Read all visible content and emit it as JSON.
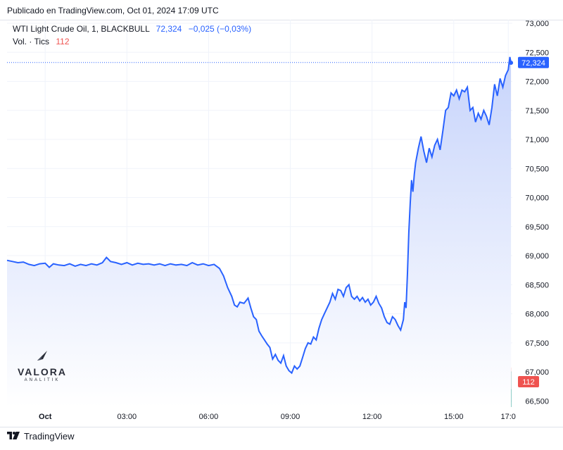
{
  "header": {
    "published": "Publicado en TradingView.com, Oct 01, 2024 17:09 UTC"
  },
  "legend": {
    "symbol": "WTI Light Crude Oil, 1, BLACKBULL",
    "price": "72,324",
    "change": "−0,025 (−0,03%)",
    "volume_label": "Vol. · Tics",
    "volume_value": "112"
  },
  "watermark": {
    "brand": "VALORA",
    "sub": "ANALITIK"
  },
  "footer": {
    "brand": "TradingView"
  },
  "colors": {
    "line": "#2962ff",
    "area_top": "#c7d4fb",
    "area_bottom": "#ffffff",
    "vol_up": "#26a69a",
    "vol_down": "#ef5350",
    "grid": "#f0f3fa",
    "axis_text": "#131722"
  },
  "chart_data": {
    "type": "area",
    "title": "WTI Light Crude Oil, 1, BLACKBULL",
    "x_unit": "hours UTC since Oct 01 00:00",
    "x_ticks": [
      {
        "label": "Oct",
        "x": 0
      },
      {
        "label": "03:00",
        "x": 3
      },
      {
        "label": "06:00",
        "x": 6
      },
      {
        "label": "09:00",
        "x": 9
      },
      {
        "label": "12:00",
        "x": 12
      },
      {
        "label": "15:00",
        "x": 15
      },
      {
        "label": "17:0",
        "x": 17
      }
    ],
    "xlim": [
      -1.4,
      17.15
    ],
    "y_ticks": [
      "73,000",
      "72,500",
      "72,000",
      "71,500",
      "71,000",
      "70,500",
      "70,000",
      "69,500",
      "69,000",
      "68,500",
      "68,000",
      "67,500",
      "67,000",
      "66,500"
    ],
    "ylim": [
      66.48,
      73.0
    ],
    "last_price": 72.324,
    "last_price_label": "72,324",
    "last_volume_label": "112",
    "series": [
      {
        "name": "WTI Light Crude Oil",
        "points": [
          [
            -1.4,
            68.92
          ],
          [
            -1.2,
            68.9
          ],
          [
            -1.0,
            68.88
          ],
          [
            -0.8,
            68.89
          ],
          [
            -0.6,
            68.85
          ],
          [
            -0.4,
            68.83
          ],
          [
            -0.2,
            68.86
          ],
          [
            0.0,
            68.87
          ],
          [
            0.15,
            68.8
          ],
          [
            0.3,
            68.86
          ],
          [
            0.5,
            68.84
          ],
          [
            0.7,
            68.83
          ],
          [
            0.9,
            68.86
          ],
          [
            1.1,
            68.82
          ],
          [
            1.3,
            68.85
          ],
          [
            1.5,
            68.83
          ],
          [
            1.7,
            68.86
          ],
          [
            1.9,
            68.84
          ],
          [
            2.1,
            68.88
          ],
          [
            2.25,
            68.97
          ],
          [
            2.4,
            68.9
          ],
          [
            2.6,
            68.88
          ],
          [
            2.8,
            68.85
          ],
          [
            3.0,
            68.88
          ],
          [
            3.2,
            68.84
          ],
          [
            3.4,
            68.87
          ],
          [
            3.6,
            68.85
          ],
          [
            3.8,
            68.86
          ],
          [
            4.0,
            68.84
          ],
          [
            4.2,
            68.86
          ],
          [
            4.4,
            68.83
          ],
          [
            4.6,
            68.86
          ],
          [
            4.8,
            68.84
          ],
          [
            5.0,
            68.85
          ],
          [
            5.2,
            68.83
          ],
          [
            5.4,
            68.88
          ],
          [
            5.6,
            68.84
          ],
          [
            5.8,
            68.86
          ],
          [
            6.0,
            68.83
          ],
          [
            6.2,
            68.85
          ],
          [
            6.4,
            68.78
          ],
          [
            6.55,
            68.65
          ],
          [
            6.7,
            68.45
          ],
          [
            6.85,
            68.3
          ],
          [
            6.95,
            68.15
          ],
          [
            7.05,
            68.12
          ],
          [
            7.15,
            68.2
          ],
          [
            7.3,
            68.18
          ],
          [
            7.45,
            68.27
          ],
          [
            7.55,
            68.1
          ],
          [
            7.65,
            67.95
          ],
          [
            7.75,
            67.9
          ],
          [
            7.85,
            67.7
          ],
          [
            7.95,
            67.62
          ],
          [
            8.05,
            67.55
          ],
          [
            8.15,
            67.48
          ],
          [
            8.25,
            67.42
          ],
          [
            8.35,
            67.22
          ],
          [
            8.45,
            67.3
          ],
          [
            8.55,
            67.2
          ],
          [
            8.65,
            67.15
          ],
          [
            8.75,
            67.28
          ],
          [
            8.85,
            67.1
          ],
          [
            8.95,
            67.02
          ],
          [
            9.05,
            66.98
          ],
          [
            9.15,
            67.1
          ],
          [
            9.25,
            67.05
          ],
          [
            9.35,
            67.1
          ],
          [
            9.45,
            67.25
          ],
          [
            9.55,
            67.4
          ],
          [
            9.65,
            67.5
          ],
          [
            9.75,
            67.48
          ],
          [
            9.85,
            67.6
          ],
          [
            9.95,
            67.55
          ],
          [
            10.05,
            67.75
          ],
          [
            10.15,
            67.9
          ],
          [
            10.25,
            68.0
          ],
          [
            10.35,
            68.1
          ],
          [
            10.45,
            68.2
          ],
          [
            10.55,
            68.35
          ],
          [
            10.65,
            68.25
          ],
          [
            10.75,
            68.42
          ],
          [
            10.85,
            68.4
          ],
          [
            10.95,
            68.3
          ],
          [
            11.05,
            68.45
          ],
          [
            11.15,
            68.5
          ],
          [
            11.25,
            68.3
          ],
          [
            11.35,
            68.25
          ],
          [
            11.45,
            68.3
          ],
          [
            11.55,
            68.22
          ],
          [
            11.65,
            68.28
          ],
          [
            11.75,
            68.2
          ],
          [
            11.85,
            68.25
          ],
          [
            11.95,
            68.15
          ],
          [
            12.05,
            68.2
          ],
          [
            12.15,
            68.3
          ],
          [
            12.25,
            68.18
          ],
          [
            12.35,
            68.1
          ],
          [
            12.45,
            67.95
          ],
          [
            12.55,
            67.85
          ],
          [
            12.65,
            67.82
          ],
          [
            12.75,
            67.95
          ],
          [
            12.85,
            67.9
          ],
          [
            12.95,
            67.8
          ],
          [
            13.05,
            67.72
          ],
          [
            13.15,
            67.9
          ],
          [
            13.2,
            68.2
          ],
          [
            13.25,
            68.1
          ],
          [
            13.3,
            68.7
          ],
          [
            13.35,
            69.4
          ],
          [
            13.4,
            69.9
          ],
          [
            13.45,
            70.3
          ],
          [
            13.5,
            70.1
          ],
          [
            13.55,
            70.4
          ],
          [
            13.6,
            70.6
          ],
          [
            13.7,
            70.85
          ],
          [
            13.8,
            71.05
          ],
          [
            13.9,
            70.8
          ],
          [
            14.0,
            70.6
          ],
          [
            14.1,
            70.85
          ],
          [
            14.2,
            70.7
          ],
          [
            14.3,
            70.9
          ],
          [
            14.4,
            71.0
          ],
          [
            14.5,
            70.82
          ],
          [
            14.6,
            71.15
          ],
          [
            14.7,
            71.5
          ],
          [
            14.8,
            71.55
          ],
          [
            14.9,
            71.8
          ],
          [
            15.0,
            71.75
          ],
          [
            15.1,
            71.85
          ],
          [
            15.2,
            71.7
          ],
          [
            15.3,
            71.85
          ],
          [
            15.4,
            71.82
          ],
          [
            15.5,
            71.9
          ],
          [
            15.6,
            71.5
          ],
          [
            15.7,
            71.55
          ],
          [
            15.8,
            71.3
          ],
          [
            15.9,
            71.45
          ],
          [
            16.0,
            71.35
          ],
          [
            16.1,
            71.5
          ],
          [
            16.2,
            71.4
          ],
          [
            16.3,
            71.25
          ],
          [
            16.4,
            71.55
          ],
          [
            16.5,
            71.95
          ],
          [
            16.6,
            71.75
          ],
          [
            16.7,
            72.05
          ],
          [
            16.8,
            71.9
          ],
          [
            16.9,
            72.1
          ],
          [
            17.0,
            72.2
          ],
          [
            17.06,
            72.42
          ],
          [
            17.1,
            72.32
          ]
        ]
      }
    ]
  }
}
